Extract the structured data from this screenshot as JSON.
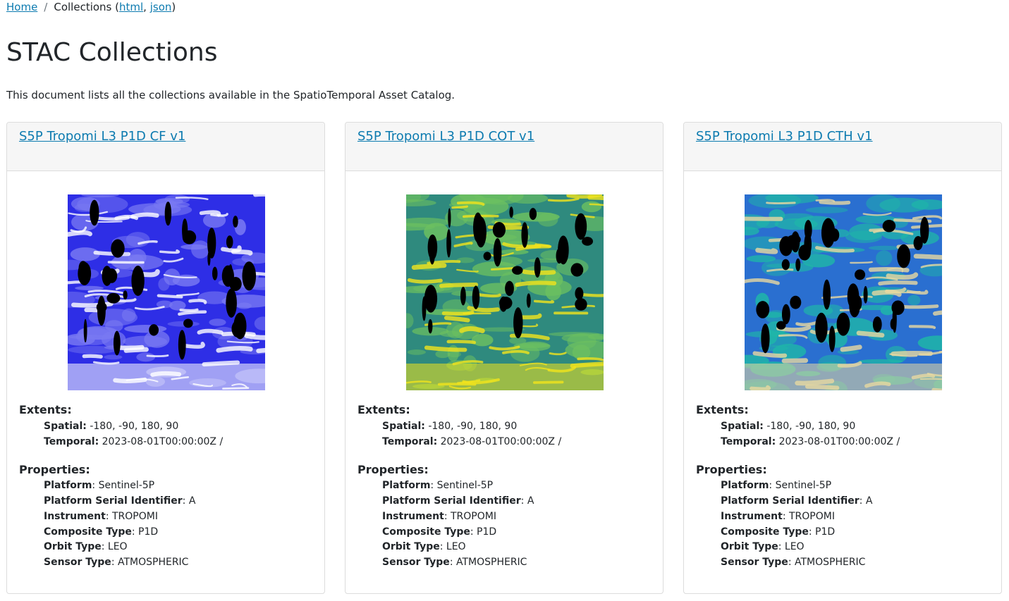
{
  "breadcrumb": {
    "home": "Home",
    "separator": "/",
    "current_prefix": "Collections (",
    "html_link": "html",
    "comma": ",",
    "json_link": "json",
    "current_suffix": ")"
  },
  "page": {
    "title": "STAC Collections",
    "intro": "This document lists all the collections available in the SpatioTemporal Asset Catalog."
  },
  "labels": {
    "extents": "Extents:",
    "spatial": "Spatial:",
    "temporal": "Temporal:",
    "properties": "Properties:",
    "platform": "Platform",
    "platform_serial": "Platform Serial Identifier",
    "instrument": "Instrument",
    "composite_type": "Composite Type",
    "orbit_type": "Orbit Type",
    "sensor_type": "Sensor Type"
  },
  "collections": [
    {
      "title": "S5P Tropomi L3 P1D CF v1",
      "spatial": "-180, -90, 180, 90",
      "temporal": "2023-08-01T00:00:00Z /",
      "platform": "Sentinel-5P",
      "platform_serial": "A",
      "instrument": "TROPOMI",
      "composite_type": "P1D",
      "orbit_type": "LEO",
      "sensor_type": "ATMOSPHERIC",
      "palette": {
        "base": "#2e2ee6",
        "mid": "#7a7af2",
        "high": "#ffffff",
        "hole": "#000000"
      }
    },
    {
      "title": "S5P Tropomi L3 P1D COT v1",
      "spatial": "-180, -90, 180, 90",
      "temporal": "2023-08-01T00:00:00Z /",
      "platform": "Sentinel-5P",
      "platform_serial": "A",
      "instrument": "TROPOMI",
      "composite_type": "P1D",
      "orbit_type": "LEO",
      "sensor_type": "ATMOSPHERIC",
      "palette": {
        "base": "#2f8a7e",
        "mid": "#6cc060",
        "high": "#f2e41c",
        "hole": "#000000"
      }
    },
    {
      "title": "S5P Tropomi L3 P1D CTH v1",
      "spatial": "-180, -90, 180, 90",
      "temporal": "2023-08-01T00:00:00Z /",
      "platform": "Sentinel-5P",
      "platform_serial": "A",
      "instrument": "TROPOMI",
      "composite_type": "P1D",
      "orbit_type": "LEO",
      "sensor_type": "ATMOSPHERIC",
      "palette": {
        "base": "#2a6fd0",
        "mid": "#1fb6a8",
        "high": "#e8d8a0",
        "hole": "#000000"
      }
    }
  ]
}
